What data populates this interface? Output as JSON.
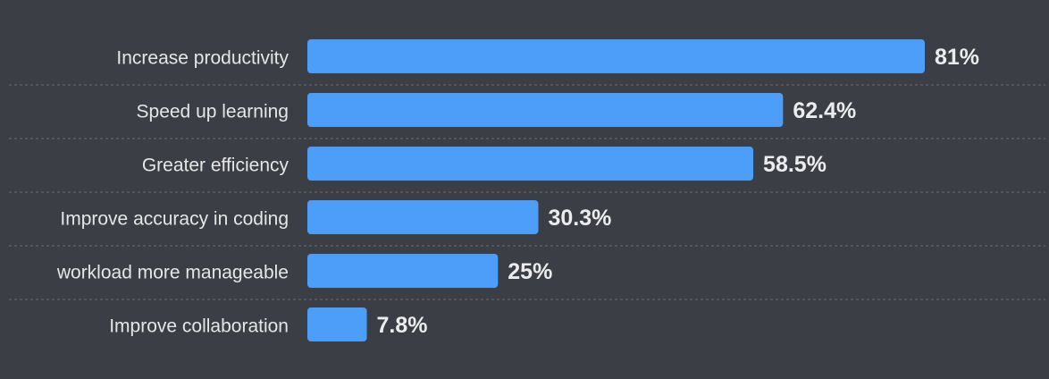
{
  "chart_data": {
    "type": "bar",
    "orientation": "horizontal",
    "categories": [
      "Increase productivity",
      "Speed up learning",
      "Greater efficiency",
      "Improve accuracy in coding",
      "workload more manageable",
      "Improve collaboration"
    ],
    "values": [
      81,
      62.4,
      58.5,
      30.3,
      25,
      7.8
    ],
    "value_labels": [
      "81%",
      "62.4%",
      "58.5%",
      "30.3%",
      "25%",
      "7.8%"
    ],
    "color": "#4d9ef9"
  }
}
